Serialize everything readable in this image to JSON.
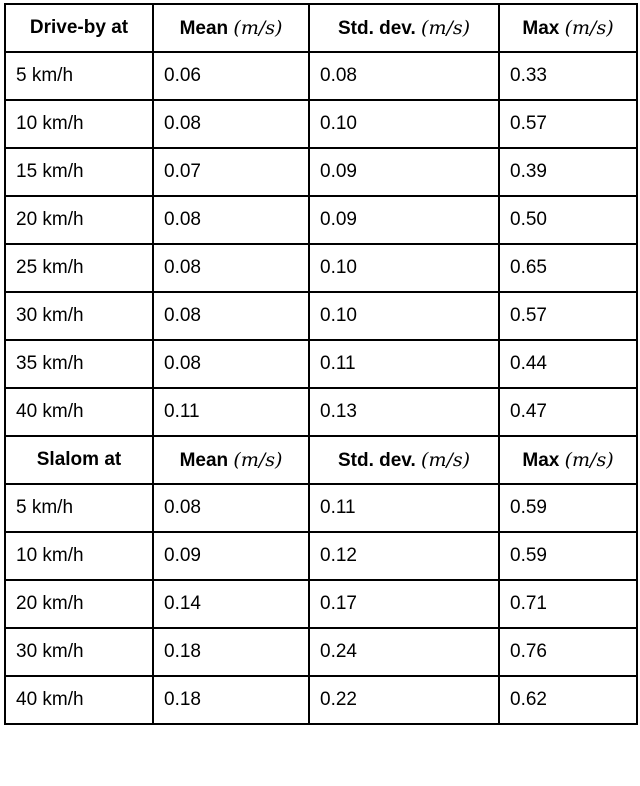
{
  "sections": [
    {
      "header": [
        {
          "text": "Drive-by at"
        },
        {
          "text": "Mean",
          "unit": "(m/s)"
        },
        {
          "text": "Std. dev.",
          "unit": "(m/s)"
        },
        {
          "text": "Max",
          "unit": "(m/s)"
        }
      ],
      "rows": [
        [
          "5 km/h",
          "0.06",
          "0.08",
          "0.33"
        ],
        [
          "10 km/h",
          "0.08",
          "0.10",
          "0.57"
        ],
        [
          "15 km/h",
          "0.07",
          "0.09",
          "0.39"
        ],
        [
          "20 km/h",
          "0.08",
          "0.09",
          "0.50"
        ],
        [
          "25 km/h",
          "0.08",
          "0.10",
          "0.65"
        ],
        [
          "30 km/h",
          "0.08",
          "0.10",
          "0.57"
        ],
        [
          "35 km/h",
          "0.08",
          "0.11",
          "0.44"
        ],
        [
          "40 km/h",
          "0.11",
          "0.13",
          "0.47"
        ]
      ]
    },
    {
      "header": [
        {
          "text": "Slalom at"
        },
        {
          "text": "Mean",
          "unit": "(m/s)"
        },
        {
          "text": "Std. dev.",
          "unit": "(m/s)"
        },
        {
          "text": "Max",
          "unit": "(m/s)"
        }
      ],
      "rows": [
        [
          "5 km/h",
          "0.08",
          "0.11",
          "0.59"
        ],
        [
          "10 km/h",
          "0.09",
          "0.12",
          "0.59"
        ],
        [
          "20 km/h",
          "0.14",
          "0.17",
          "0.71"
        ],
        [
          "30 km/h",
          "0.18",
          "0.24",
          "0.76"
        ],
        [
          "40 km/h",
          "0.18",
          "0.22",
          "0.62"
        ]
      ]
    }
  ]
}
